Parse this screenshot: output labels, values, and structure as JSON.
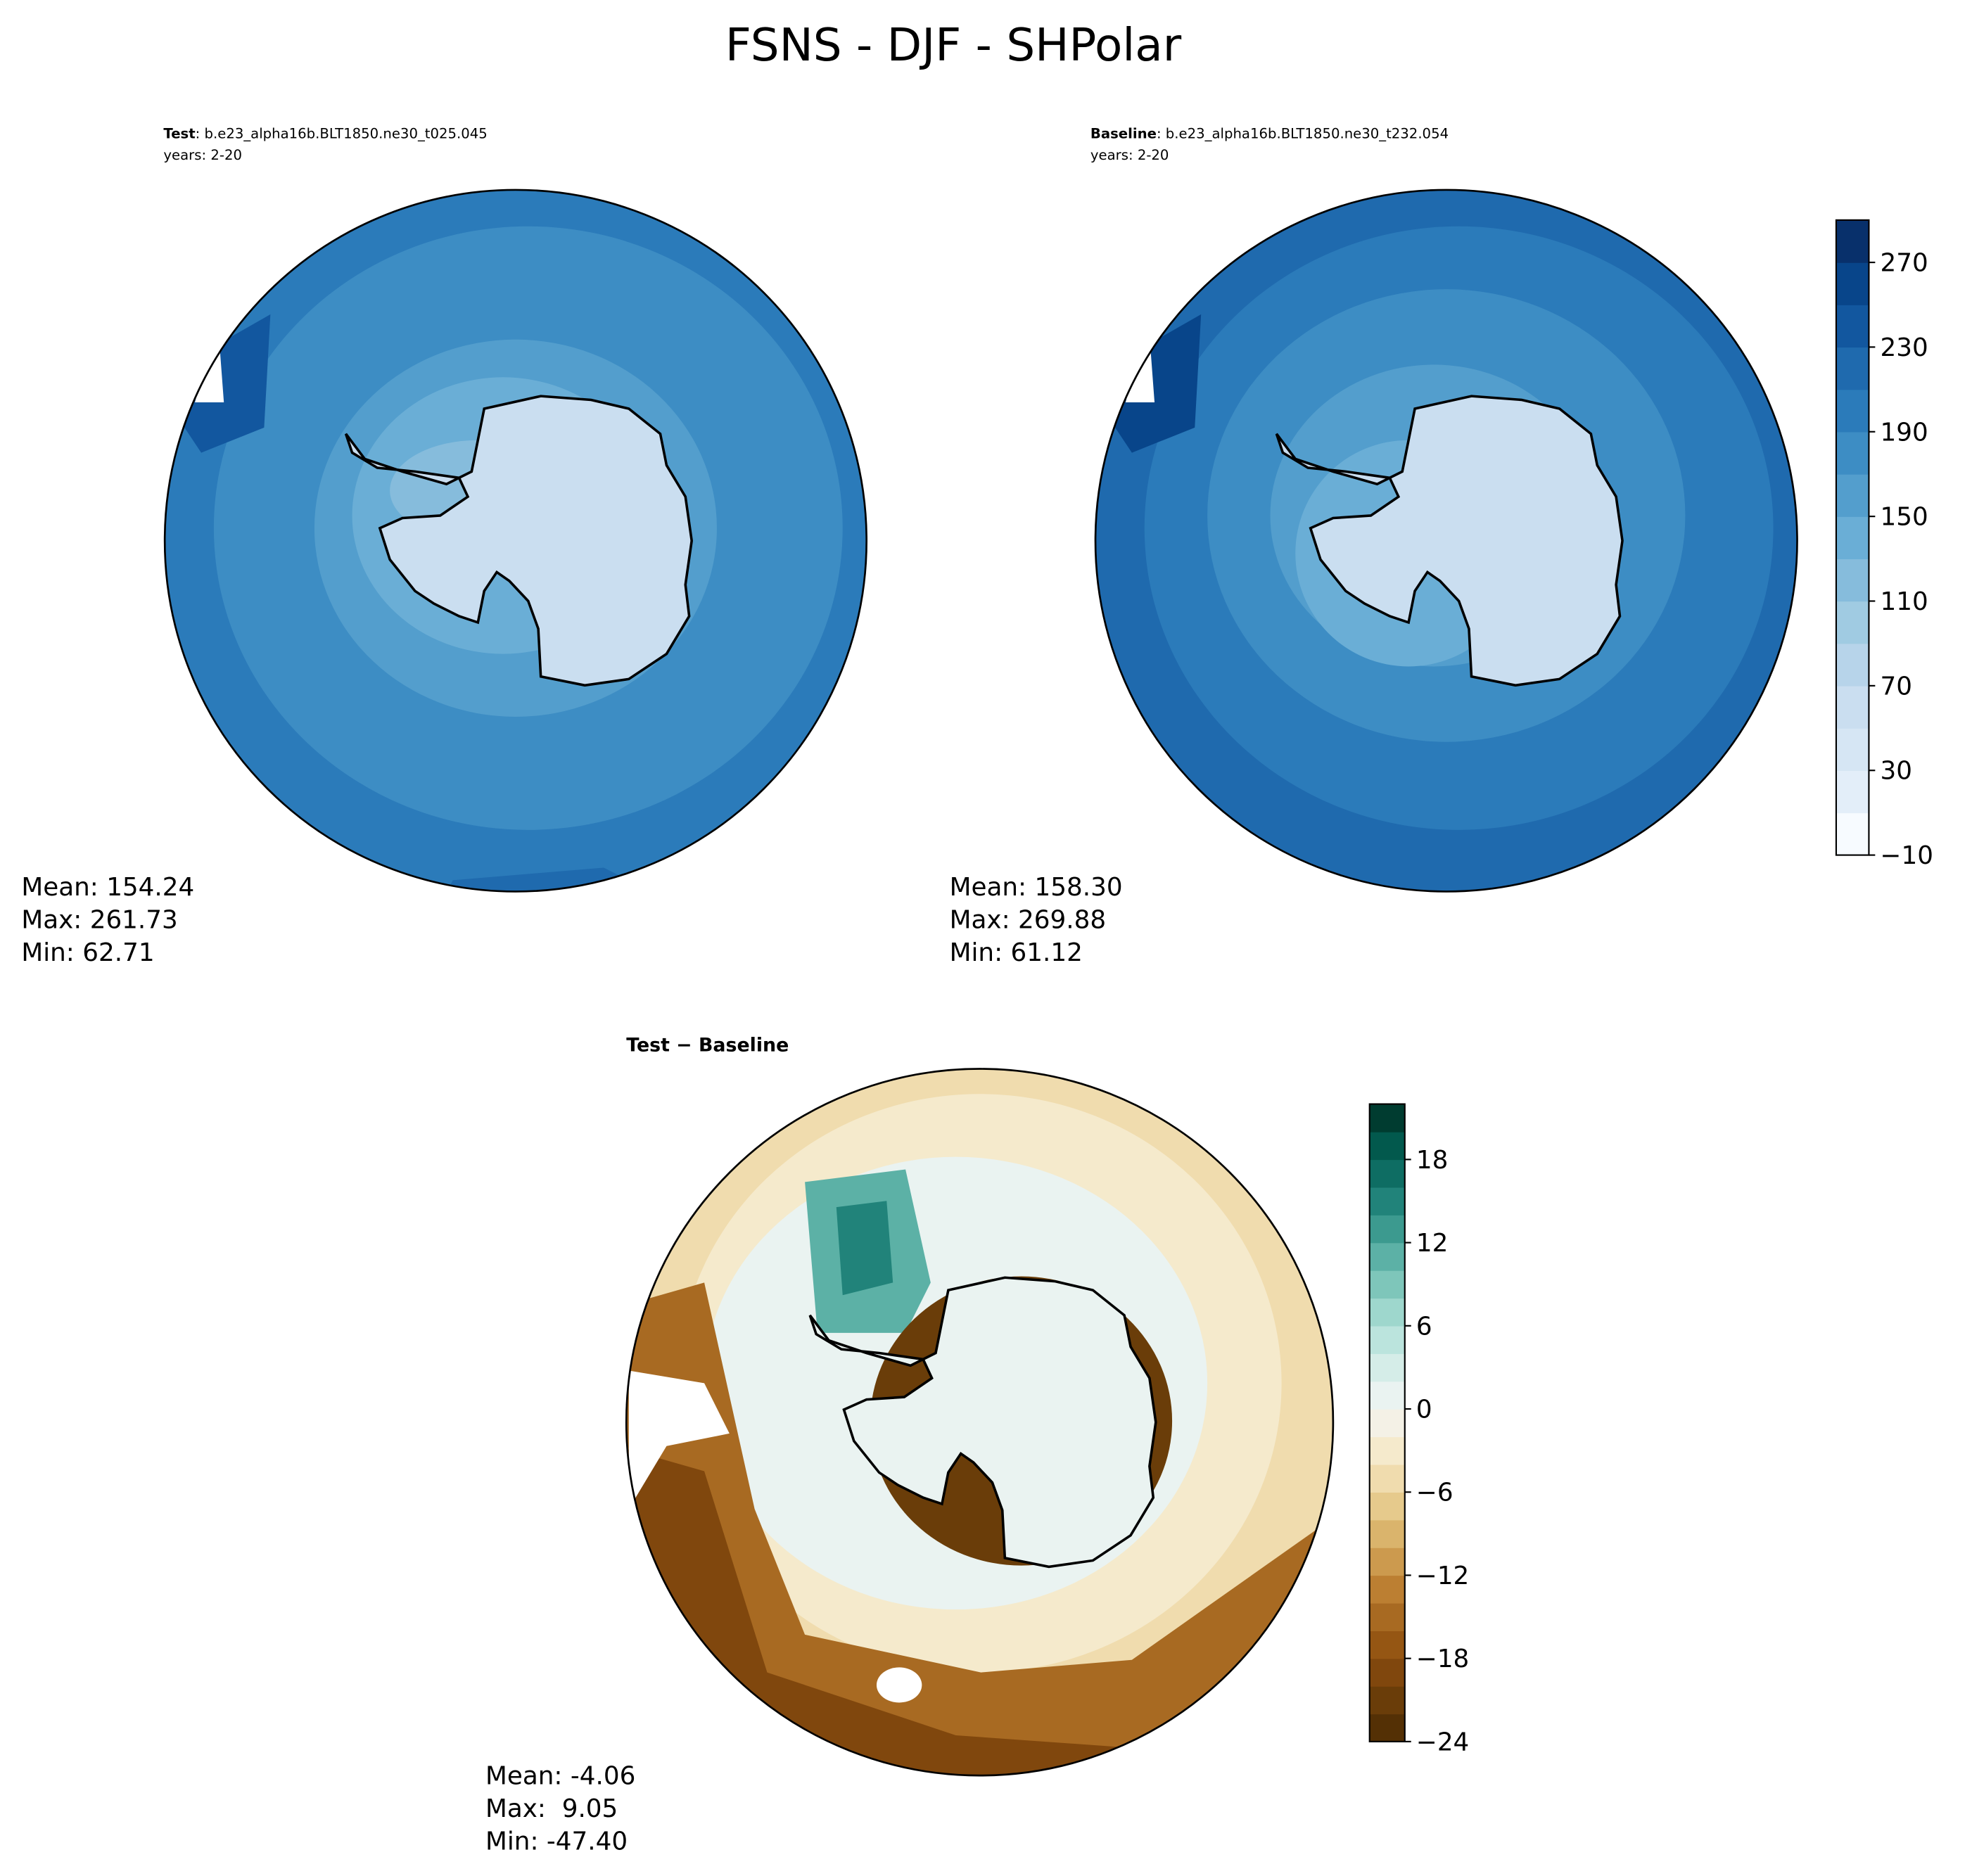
{
  "chart_data": {
    "type": "polar-map",
    "title": "FSNS - DJF - SHPolar",
    "panels": [
      {
        "title_bold": "Test",
        "title_rest": ": b.e23_alpha16b.BLT1850.ne30_t025.045",
        "years": "years: 2-20",
        "stats": [
          "Mean: 154.24",
          "Max: 261.73",
          "Min: 62.71"
        ]
      },
      {
        "title_bold": "Baseline",
        "title_rest": ": b.e23_alpha16b.BLT1850.ne30_t232.054",
        "years": "years: 2-20",
        "stats": [
          "Mean: 158.30",
          "Max: 269.88",
          "Min: 61.12"
        ]
      },
      {
        "title_bold": "Test − Baseline",
        "stats": [
          "Mean: -4.06",
          "Max:  9.05",
          "Min: -47.40"
        ]
      }
    ],
    "colorbars": [
      {
        "lim": [
          -10,
          290
        ],
        "ticks": [
          {
            "value": -10,
            "label": "−10"
          },
          30,
          70,
          110,
          150,
          190,
          230,
          270
        ],
        "colors": [
          "#f7fbff",
          "#e3eef9",
          "#d6e6f4",
          "#cadef0",
          "#b7d4ea",
          "#a0cbe2",
          "#86bcdc",
          "#6aaed6",
          "#539ecd",
          "#3d8dc4",
          "#2b7bba",
          "#1f6aae",
          "#12579f",
          "#08458a",
          "#08306b"
        ]
      },
      {
        "lim": [
          -24,
          22
        ],
        "ticks": [
          {
            "value": -24,
            "label": "−24"
          },
          {
            "value": -18,
            "label": "−18"
          },
          {
            "value": -12,
            "label": "−12"
          },
          {
            "value": -6,
            "label": "−6"
          },
          0,
          6,
          12,
          18
        ],
        "colors": [
          "#543005",
          "#6a3d09",
          "#80470d",
          "#955613",
          "#a86a22",
          "#bc7f32",
          "#cc9a4e",
          "#dab46c",
          "#e6ca8c",
          "#f0dcae",
          "#f5eacc",
          "#f4f1e6",
          "#eaf3f1",
          "#d5ede8",
          "#bbe4dd",
          "#9ed7cd",
          "#7ec6ba",
          "#5cb1a6",
          "#3c9a8f",
          "#21837a",
          "#0e6d63",
          "#02594d",
          "#003c30"
        ]
      }
    ]
  }
}
